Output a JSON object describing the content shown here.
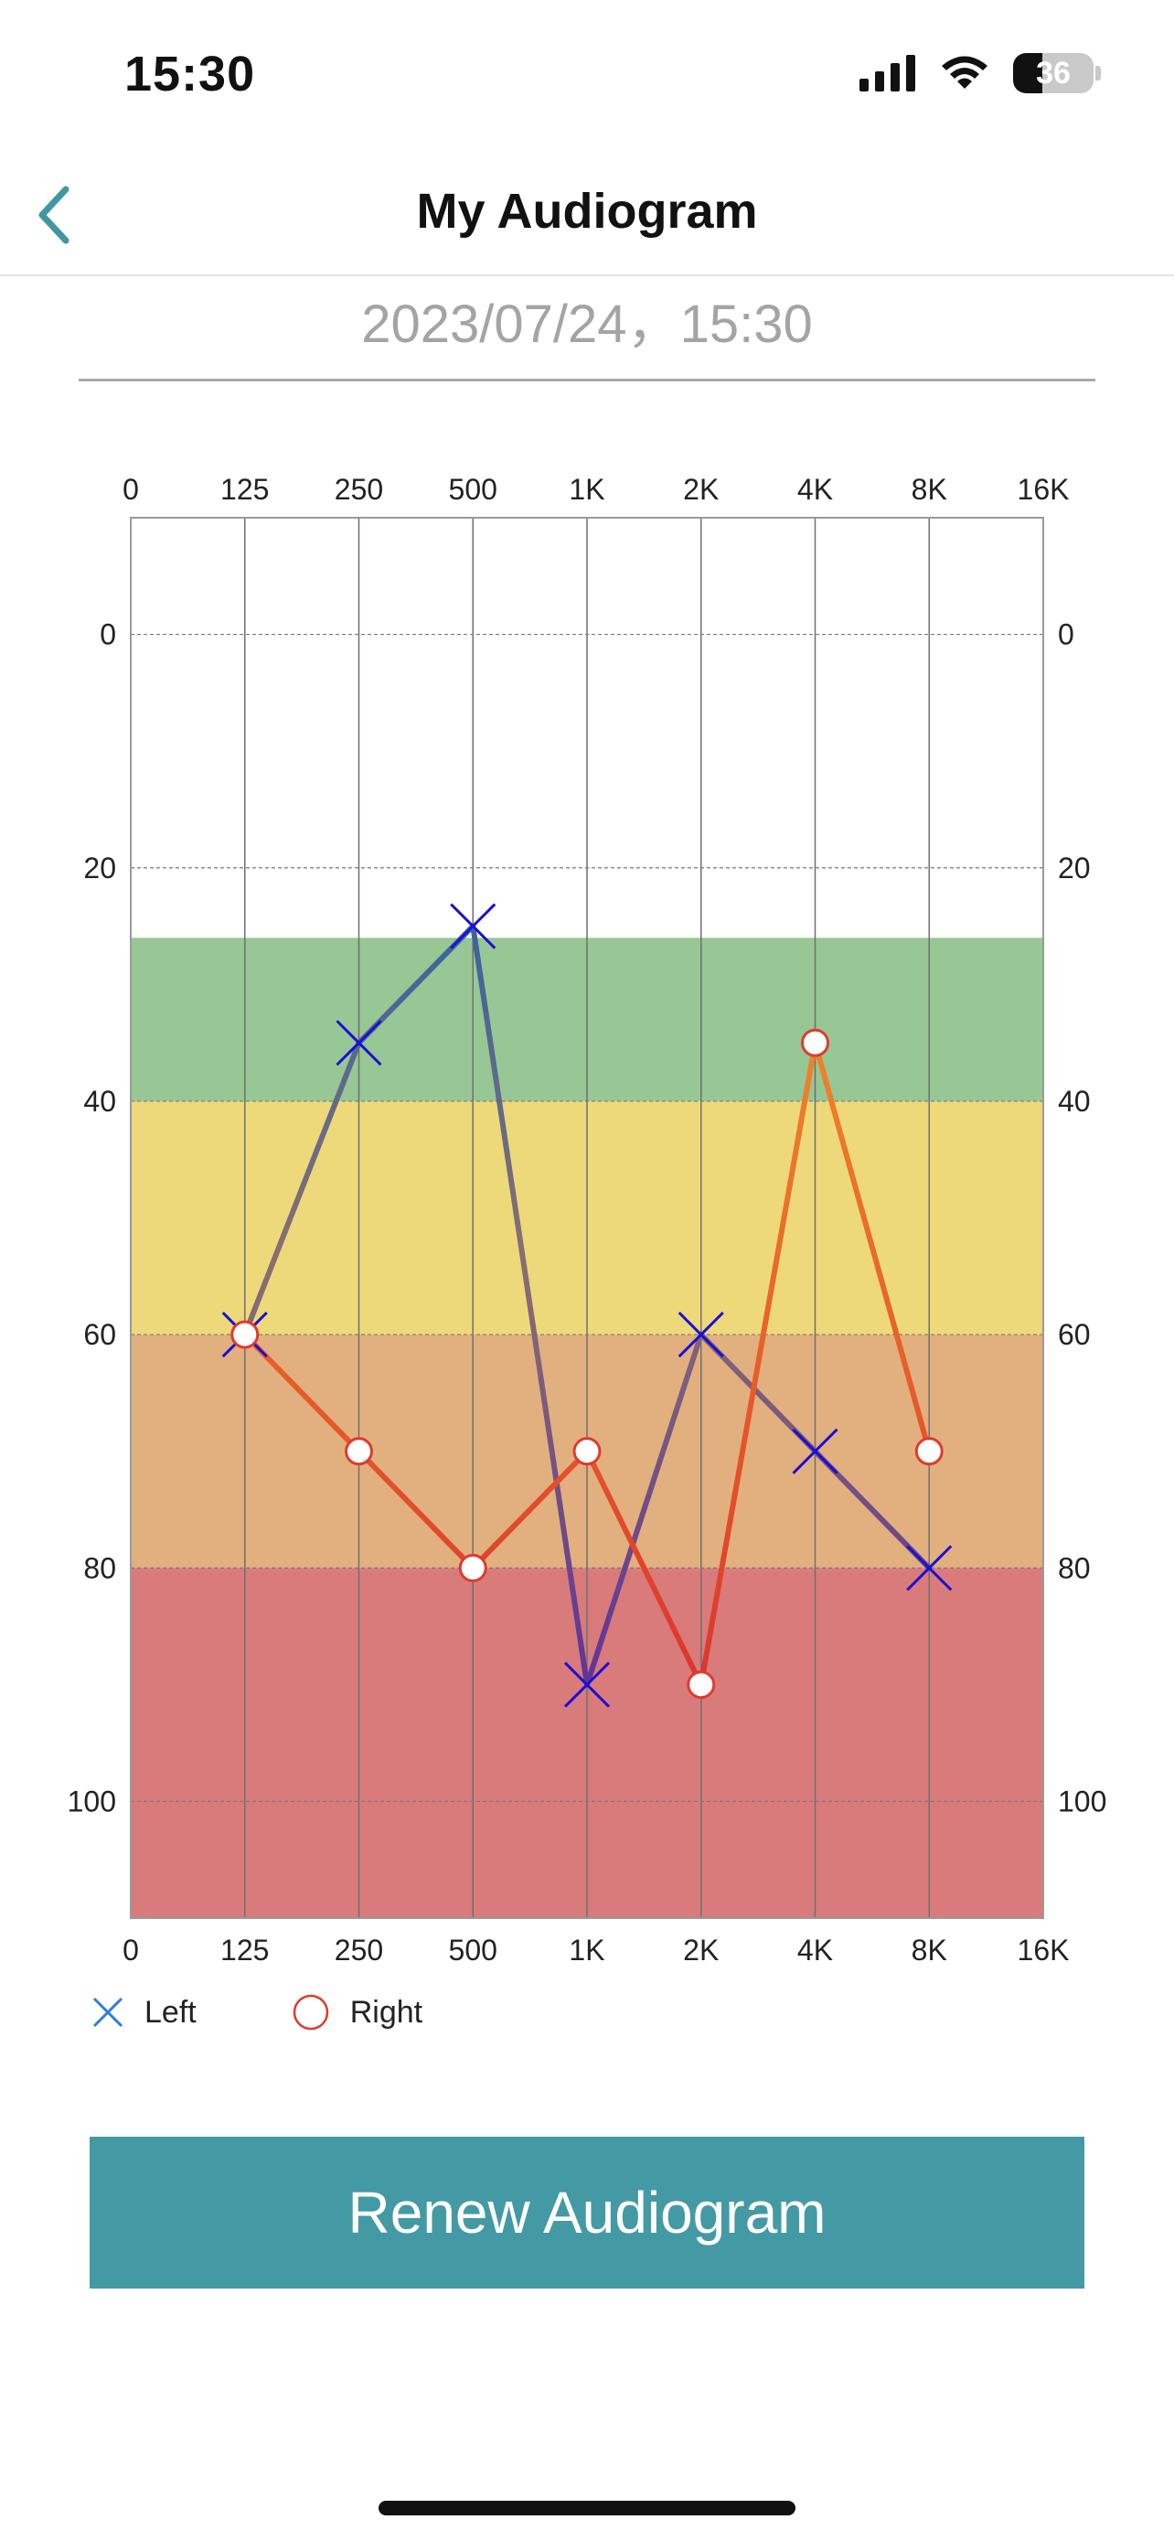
{
  "status_bar": {
    "time": "15:30",
    "battery_level": "36",
    "icons": [
      "signal-icon",
      "wifi-icon",
      "battery-icon"
    ]
  },
  "nav": {
    "title": "My Audiogram",
    "back_icon": "chevron-left-icon"
  },
  "date_text": "2023/07/24，15:30",
  "chart_data": {
    "type": "line",
    "x_categories": [
      "0",
      "125",
      "250",
      "500",
      "1K",
      "2K",
      "4K",
      "8K",
      "16K"
    ],
    "y_ticks": [
      "0",
      "20",
      "40",
      "60",
      "80",
      "100"
    ],
    "ylim": [
      -10,
      110
    ],
    "y_inverted": true,
    "grid": true,
    "bands": [
      {
        "from": 26,
        "to": 40,
        "color": "#97c794"
      },
      {
        "from": 40,
        "to": 60,
        "color": "#eed97a"
      },
      {
        "from": 60,
        "to": 80,
        "color": "#e2b07e"
      },
      {
        "from": 80,
        "to": 110,
        "color": "#d97b7b"
      }
    ],
    "series": [
      {
        "name": "Left",
        "marker": "cross",
        "marker_color": "#1a0fd6",
        "x": [
          "125",
          "250",
          "500",
          "1K",
          "2K",
          "4K",
          "8K"
        ],
        "values": [
          60,
          35,
          25,
          90,
          60,
          70,
          80
        ]
      },
      {
        "name": "Right",
        "marker": "circle",
        "marker_color": "#e03a2e",
        "x": [
          "125",
          "250",
          "500",
          "1K",
          "2K",
          "4K",
          "8K"
        ],
        "values": [
          60,
          70,
          80,
          70,
          90,
          35,
          70
        ]
      }
    ]
  },
  "legend": {
    "left_label": "Left",
    "right_label": "Right",
    "left_color": "#2f7de0",
    "right_color": "#e03a2e"
  },
  "renew_button_label": "Renew Audiogram",
  "colors": {
    "accent": "#449aa4",
    "back_chevron": "#3e97a3"
  }
}
